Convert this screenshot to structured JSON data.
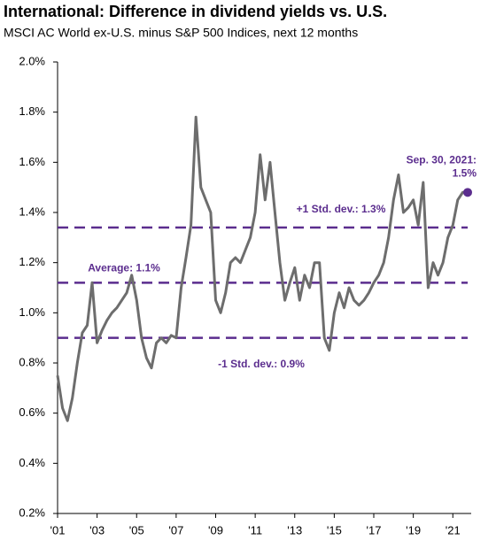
{
  "chart_data": {
    "type": "line",
    "title": "International: Difference in dividend yields vs. U.S.",
    "subtitle": "MSCI AC World ex-U.S. minus S&P 500 Indices, next 12 months",
    "x": [
      2001.0,
      2001.25,
      2001.5,
      2001.75,
      2002.0,
      2002.25,
      2002.5,
      2002.75,
      2003.0,
      2003.25,
      2003.5,
      2003.75,
      2004.0,
      2004.25,
      2004.5,
      2004.75,
      2005.0,
      2005.25,
      2005.5,
      2005.75,
      2006.0,
      2006.25,
      2006.5,
      2006.75,
      2007.0,
      2007.25,
      2007.5,
      2007.75,
      2008.0,
      2008.25,
      2008.5,
      2008.75,
      2009.0,
      2009.25,
      2009.5,
      2009.75,
      2010.0,
      2010.25,
      2010.5,
      2010.75,
      2011.0,
      2011.25,
      2011.5,
      2011.75,
      2012.0,
      2012.25,
      2012.5,
      2012.75,
      2013.0,
      2013.25,
      2013.5,
      2013.75,
      2014.0,
      2014.25,
      2014.5,
      2014.75,
      2015.0,
      2015.25,
      2015.5,
      2015.75,
      2016.0,
      2016.25,
      2016.5,
      2016.75,
      2017.0,
      2017.25,
      2017.5,
      2017.75,
      2018.0,
      2018.25,
      2018.5,
      2018.75,
      2019.0,
      2019.25,
      2019.5,
      2019.75,
      2020.0,
      2020.25,
      2020.5,
      2020.75,
      2021.0,
      2021.25,
      2021.5,
      2021.75
    ],
    "series": [
      {
        "name": "Difference in dividend yields",
        "color": "#6d6d6d",
        "values": [
          0.75,
          0.62,
          0.57,
          0.66,
          0.8,
          0.92,
          0.95,
          1.12,
          0.88,
          0.93,
          0.97,
          1.0,
          1.02,
          1.05,
          1.08,
          1.15,
          1.05,
          0.9,
          0.82,
          0.78,
          0.88,
          0.9,
          0.88,
          0.91,
          0.9,
          1.1,
          1.22,
          1.35,
          1.78,
          1.5,
          1.45,
          1.4,
          1.05,
          1.0,
          1.08,
          1.2,
          1.22,
          1.2,
          1.25,
          1.3,
          1.4,
          1.63,
          1.45,
          1.6,
          1.4,
          1.2,
          1.05,
          1.12,
          1.18,
          1.05,
          1.15,
          1.1,
          1.2,
          1.2,
          0.9,
          0.85,
          1.0,
          1.08,
          1.02,
          1.1,
          1.05,
          1.03,
          1.05,
          1.08,
          1.12,
          1.15,
          1.2,
          1.3,
          1.45,
          1.55,
          1.4,
          1.42,
          1.45,
          1.35,
          1.52,
          1.1,
          1.2,
          1.15,
          1.2,
          1.3,
          1.35,
          1.45,
          1.48,
          1.48
        ]
      }
    ],
    "xlim": [
      2001,
      2021.75
    ],
    "xticks": [
      {
        "value": 2001,
        "label": "'01"
      },
      {
        "value": 2003,
        "label": "'03"
      },
      {
        "value": 2005,
        "label": "'05"
      },
      {
        "value": 2007,
        "label": "'07"
      },
      {
        "value": 2009,
        "label": "'09"
      },
      {
        "value": 2011,
        "label": "'11"
      },
      {
        "value": 2013,
        "label": "'13"
      },
      {
        "value": 2015,
        "label": "'15"
      },
      {
        "value": 2017,
        "label": "'17"
      },
      {
        "value": 2019,
        "label": "'19"
      },
      {
        "value": 2021,
        "label": "'21"
      }
    ],
    "ylim": [
      0.2,
      2.0
    ],
    "yticks": [
      {
        "value": 0.2,
        "label": "0.2%"
      },
      {
        "value": 0.4,
        "label": "0.4%"
      },
      {
        "value": 0.6,
        "label": "0.6%"
      },
      {
        "value": 0.8,
        "label": "0.8%"
      },
      {
        "value": 1.0,
        "label": "1.0%"
      },
      {
        "value": 1.2,
        "label": "1.2%"
      },
      {
        "value": 1.4,
        "label": "1.4%"
      },
      {
        "value": 1.6,
        "label": "1.6%"
      },
      {
        "value": 1.8,
        "label": "1.8%"
      },
      {
        "value": 2.0,
        "label": "2.0%"
      }
    ],
    "reference_lines": [
      {
        "value": 1.12,
        "label": "Average: 1.1%"
      },
      {
        "value": 1.34,
        "label": "+1 Std. dev.: 1.3%"
      },
      {
        "value": 0.9,
        "label": "-1 Std. dev.: 0.9%"
      }
    ],
    "reference_color": "#5b2d8e",
    "end_point": {
      "x": 2021.75,
      "value": 1.48,
      "label_lines": [
        "Sep. 30, 2021:",
        "1.5%"
      ],
      "color": "#5b2d8e"
    }
  }
}
